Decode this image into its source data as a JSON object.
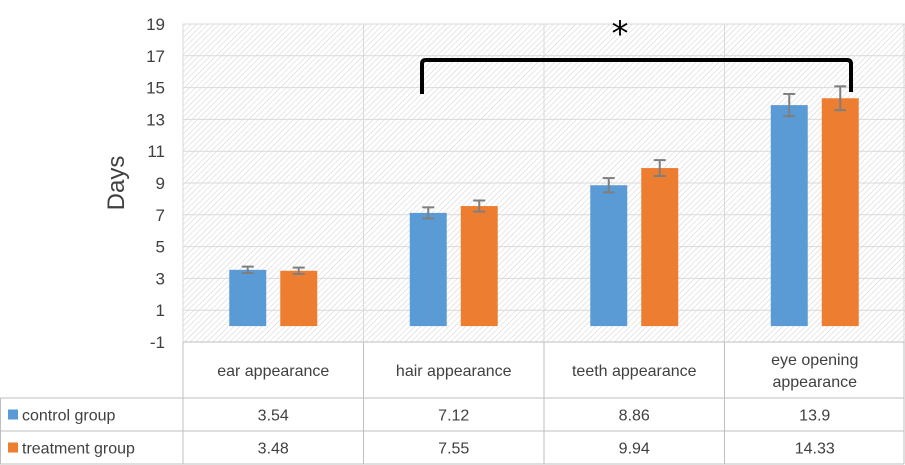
{
  "chart_data": {
    "type": "bar",
    "title": "",
    "xlabel": "",
    "ylabel": "Days",
    "ylim": [
      -1,
      19
    ],
    "yticks": [
      -1,
      1,
      3,
      5,
      7,
      9,
      11,
      13,
      15,
      17,
      19
    ],
    "grid": true,
    "categories": [
      "ear appearance",
      "hair appearance",
      "teeth appearance",
      "eye opening appearance"
    ],
    "category_lines": [
      [
        "ear appearance"
      ],
      [
        "hair appearance"
      ],
      [
        "teeth appearance"
      ],
      [
        "eye opening",
        "appearance"
      ]
    ],
    "series": [
      {
        "name": "control group",
        "color": "#5B9BD5",
        "values": [
          3.54,
          7.12,
          8.86,
          13.9
        ],
        "labels": [
          "3.54",
          "7.12",
          "8.86",
          "13.9"
        ],
        "errors": [
          0.2,
          0.35,
          0.45,
          0.7
        ]
      },
      {
        "name": "treatment group",
        "color": "#ED7D31",
        "values": [
          3.48,
          7.55,
          9.94,
          14.33
        ],
        "labels": [
          "3.48",
          "7.55",
          "9.94",
          "14.33"
        ],
        "errors": [
          0.2,
          0.35,
          0.5,
          0.75
        ]
      }
    ],
    "significance": {
      "symbol": "*",
      "from_category": "hair appearance",
      "to_category": "eye opening appearance"
    },
    "legend": "data-table"
  }
}
